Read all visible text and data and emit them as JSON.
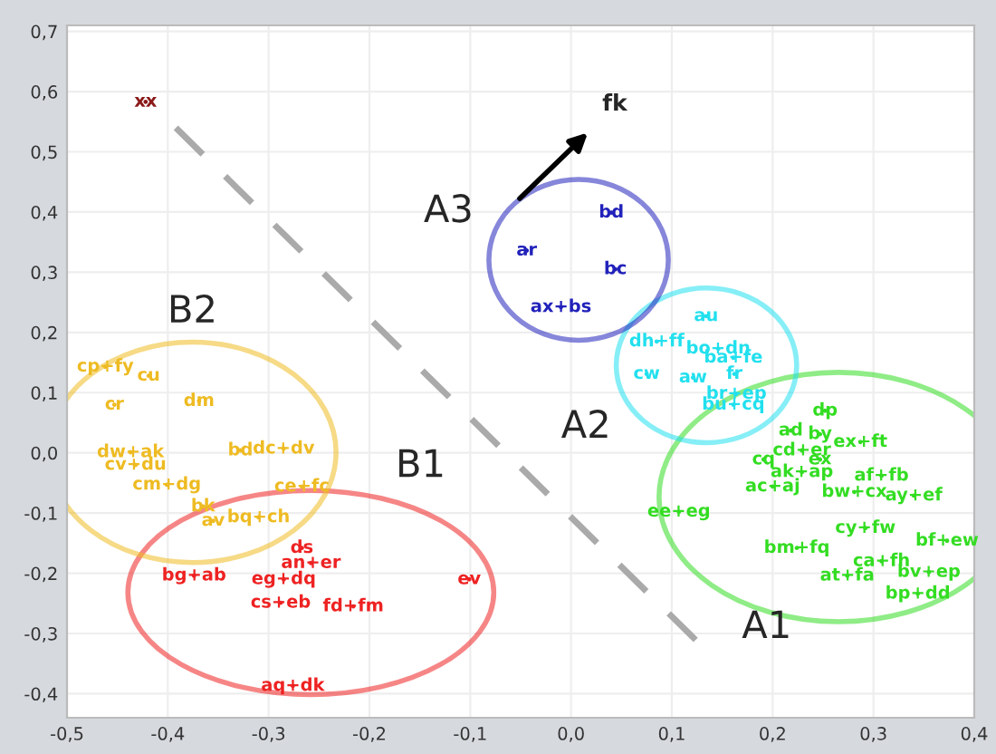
{
  "chart_data": {
    "type": "scatter",
    "xlim": [
      -0.5,
      0.4
    ],
    "ylim": [
      -0.44,
      0.71
    ],
    "xticks": [
      {
        "value": -0.5,
        "label": "-0,5"
      },
      {
        "value": -0.4,
        "label": "-0,4"
      },
      {
        "value": -0.3,
        "label": "-0,3"
      },
      {
        "value": -0.2,
        "label": "-0,2"
      },
      {
        "value": -0.1,
        "label": "-0,1"
      },
      {
        "value": 0,
        "label": "0,0"
      },
      {
        "value": 0.1,
        "label": "0,1"
      },
      {
        "value": 0.2,
        "label": "0,2"
      },
      {
        "value": 0.3,
        "label": "0,3"
      },
      {
        "value": 0.4,
        "label": "0,4"
      }
    ],
    "yticks": [
      {
        "value": -0.4,
        "label": "-0,4"
      },
      {
        "value": -0.3,
        "label": "-0,3"
      },
      {
        "value": -0.2,
        "label": "-0,2"
      },
      {
        "value": -0.1,
        "label": "-0,1"
      },
      {
        "value": 0,
        "label": "0,0"
      },
      {
        "value": 0.1,
        "label": "0,1"
      },
      {
        "value": 0.2,
        "label": "0,2"
      },
      {
        "value": 0.3,
        "label": "0,3"
      },
      {
        "value": 0.4,
        "label": "0,4"
      },
      {
        "value": 0.5,
        "label": "0,5"
      },
      {
        "value": 0.6,
        "label": "0,6"
      },
      {
        "value": 0.7,
        "label": "0,7"
      }
    ],
    "grid": true,
    "marker": "circle",
    "series": [
      {
        "name": "A1",
        "color": "#33dd22",
        "x": [
          0.252,
          0.218,
          0.247,
          0.287,
          0.191,
          0.229,
          0.247,
          0.229,
          0.308,
          0.2,
          0.281,
          0.34,
          0.107,
          0.292,
          0.373,
          0.224,
          0.308,
          0.274,
          0.355,
          0.344
        ],
        "values": [
          0.07,
          0.037,
          0.031,
          0.018,
          -0.011,
          0.004,
          -0.011,
          -0.032,
          -0.038,
          -0.056,
          -0.065,
          -0.071,
          -0.098,
          -0.125,
          -0.146,
          -0.158,
          -0.18,
          -0.204,
          -0.198,
          -0.234
        ],
        "value_labels": [
          "dp",
          "ad",
          "by",
          "ex+ft",
          "cq",
          "cd+er",
          "ex",
          "ak+ap",
          "af+fb",
          "ac+aj",
          "bw+cx",
          "ay+ef",
          "ee+eg",
          "cy+fw",
          "bf+ew",
          "bm+fq",
          "ca+fh",
          "at+fa",
          "bv+ep",
          "bp+dd"
        ]
      },
      {
        "name": "A2",
        "color": "#22e0ee",
        "x": [
          0.134,
          0.085,
          0.146,
          0.161,
          0.075,
          0.121,
          0.162,
          0.164,
          0.161
        ],
        "values": [
          0.227,
          0.185,
          0.173,
          0.158,
          0.131,
          0.125,
          0.131,
          0.098,
          0.08
        ],
        "value_labels": [
          "au",
          "dh+ff",
          "bo+dn",
          "ba+fe",
          "cw",
          "aw",
          "fr",
          "br+ep",
          "bu+cq"
        ]
      },
      {
        "name": "A3",
        "color": "#2222bb",
        "x": [
          0.04,
          -0.044,
          0.044,
          -0.01
        ],
        "values": [
          0.399,
          0.336,
          0.305,
          0.242
        ],
        "value_labels": [
          "bd",
          "ar",
          "bc",
          "ax+bs"
        ]
      },
      {
        "name": "B1",
        "color": "#ee2222",
        "x": [
          -0.267,
          -0.258,
          -0.374,
          -0.285,
          -0.288,
          -0.216,
          -0.101,
          -0.276
        ],
        "values": [
          -0.158,
          -0.183,
          -0.204,
          -0.21,
          -0.249,
          -0.255,
          -0.21,
          -0.387
        ],
        "value_labels": [
          "ds",
          "an+er",
          "bg+ab",
          "eg+dq",
          "cs+eb",
          "fd+fm",
          "ev",
          "aq+dk"
        ]
      },
      {
        "name": "B2",
        "color": "#eebb22",
        "x": [
          -0.462,
          -0.419,
          -0.453,
          -0.369,
          -0.437,
          -0.432,
          -0.401,
          -0.328,
          -0.285,
          -0.267,
          -0.365,
          -0.355,
          -0.31
        ],
        "values": [
          0.143,
          0.128,
          0.08,
          0.086,
          0.001,
          -0.02,
          -0.053,
          0.004,
          0.007,
          -0.056,
          -0.089,
          -0.113,
          -0.107
        ],
        "value_labels": [
          "cp+fy",
          "cu",
          "cr",
          "dm",
          "dw+ak",
          "cv+du",
          "cm+dg",
          "bd",
          "dc+dv",
          "ce+fc",
          "bk",
          "av",
          "bq+ch"
        ]
      },
      {
        "color": "#8b1a1a",
        "x": [
          -0.422
        ],
        "values": [
          0.583
        ],
        "value_labels": [
          "xx"
        ]
      },
      {
        "type": "line",
        "marker": "none",
        "color": "#aaaaaa",
        "line_style": "dashed",
        "x": [
          -0.392,
          0.128
        ],
        "values": [
          0.54,
          -0.318
        ]
      }
    ],
    "annotations": [
      "fk"
    ]
  }
}
